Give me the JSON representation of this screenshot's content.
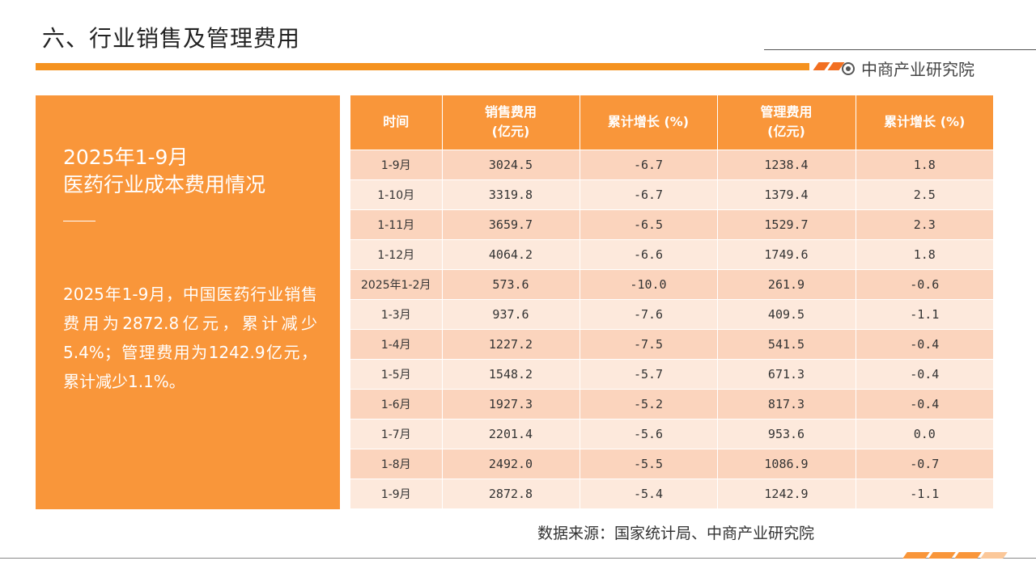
{
  "header": {
    "title": "六、行业销售及管理费用",
    "brand": "中商产业研究院"
  },
  "left_panel": {
    "heading_line1": "2025年1-9月",
    "heading_line2": "医药行业成本费用情况",
    "body": "2025年1-9月，中国医药行业销售费用为2872.8亿元，累计减少5.4%；管理费用为1242.9亿元，累计减少1.1%。"
  },
  "table": {
    "columns": [
      {
        "line1": "时间",
        "line2": ""
      },
      {
        "line1": "销售费用",
        "line2": "(亿元)"
      },
      {
        "line1": "累计增长 (%)",
        "line2": ""
      },
      {
        "line1": "管理费用",
        "line2": "(亿元)"
      },
      {
        "line1": "累计增长 (%)",
        "line2": ""
      }
    ],
    "rows": [
      [
        "1-9月",
        "3024.5",
        "-6.7",
        "1238.4",
        "1.8"
      ],
      [
        "1-10月",
        "3319.8",
        "-6.7",
        "1379.4",
        "2.5"
      ],
      [
        "1-11月",
        "3659.7",
        "-6.5",
        "1529.7",
        "2.3"
      ],
      [
        "1-12月",
        "4064.2",
        "-6.6",
        "1749.6",
        "1.8"
      ],
      [
        "2025年1-2月",
        "573.6",
        "-10.0",
        "261.9",
        "-0.6"
      ],
      [
        "1-3月",
        "937.6",
        "-7.6",
        "409.5",
        "-1.1"
      ],
      [
        "1-4月",
        "1227.2",
        "-7.5",
        "541.5",
        "-0.4"
      ],
      [
        "1-5月",
        "1548.2",
        "-5.7",
        "671.3",
        "-0.4"
      ],
      [
        "1-6月",
        "1927.3",
        "-5.2",
        "817.3",
        "-0.4"
      ],
      [
        "1-7月",
        "2201.4",
        "-5.6",
        "953.6",
        "0.0"
      ],
      [
        "1-8月",
        "2492.0",
        "-5.5",
        "1086.9",
        "-0.7"
      ],
      [
        "1-9月",
        "2872.8",
        "-5.4",
        "1242.9",
        "-1.1"
      ]
    ]
  },
  "footer": {
    "source": "数据来源：国家统计局、中商产业研究院"
  },
  "colors": {
    "accent": "#f9963a",
    "row_dark": "#fbd4bd",
    "row_light": "#fde9dc"
  }
}
